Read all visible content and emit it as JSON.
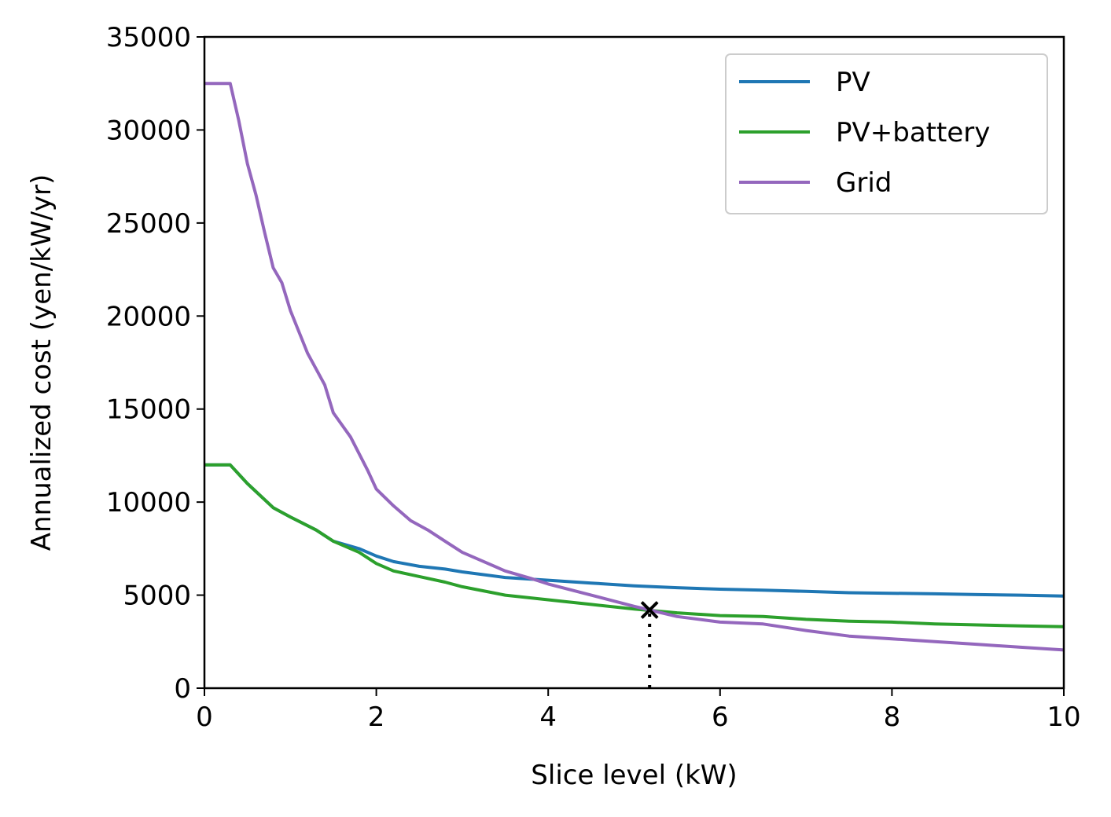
{
  "chart_data": {
    "type": "line",
    "title": "",
    "xlabel": "Slice level (kW)",
    "ylabel": "Annualized cost (yen/kW/yr)",
    "xlim": [
      0,
      10
    ],
    "ylim": [
      0,
      35000
    ],
    "xticks": [
      0,
      2,
      4,
      6,
      8,
      10
    ],
    "xtick_labels": [
      "0",
      "2",
      "4",
      "6",
      "8",
      "10"
    ],
    "yticks": [
      0,
      5000,
      10000,
      15000,
      20000,
      25000,
      30000,
      35000
    ],
    "ytick_labels": [
      "0",
      "5000",
      "10000",
      "15000",
      "20000",
      "25000",
      "30000",
      "35000"
    ],
    "grid": false,
    "legend_position": "top-right",
    "series": [
      {
        "name": "PV",
        "color": "#1f77b4",
        "x": [
          0,
          0.3,
          0.5,
          0.8,
          1.0,
          1.3,
          1.5,
          1.8,
          2.0,
          2.2,
          2.5,
          2.8,
          3.0,
          3.5,
          4.0,
          4.5,
          5.0,
          5.5,
          6.0,
          6.5,
          7.0,
          7.5,
          8.0,
          8.5,
          9.0,
          9.5,
          10.0
        ],
        "y": [
          12000,
          12000,
          11000,
          9700,
          9200,
          8500,
          7900,
          7500,
          7100,
          6800,
          6550,
          6400,
          6250,
          5950,
          5800,
          5650,
          5500,
          5400,
          5320,
          5270,
          5200,
          5130,
          5100,
          5070,
          5030,
          5000,
          4950
        ]
      },
      {
        "name": "PV+battery",
        "color": "#2ca02c",
        "x": [
          0,
          0.3,
          0.5,
          0.8,
          1.0,
          1.3,
          1.5,
          1.8,
          2.0,
          2.2,
          2.5,
          2.8,
          3.0,
          3.5,
          4.0,
          4.5,
          5.0,
          5.5,
          6.0,
          6.5,
          7.0,
          7.5,
          8.0,
          8.5,
          9.0,
          9.5,
          10.0
        ],
        "y": [
          12000,
          12000,
          11000,
          9700,
          9200,
          8500,
          7900,
          7300,
          6700,
          6300,
          6000,
          5700,
          5450,
          5000,
          4750,
          4500,
          4250,
          4050,
          3900,
          3850,
          3700,
          3600,
          3550,
          3450,
          3400,
          3350,
          3300
        ]
      },
      {
        "name": "Grid",
        "color": "#9467bd",
        "x": [
          0,
          0.3,
          0.4,
          0.5,
          0.6,
          0.7,
          0.8,
          0.9,
          1.0,
          1.2,
          1.4,
          1.5,
          1.7,
          1.9,
          2.0,
          2.2,
          2.4,
          2.6,
          2.8,
          3.0,
          3.2,
          3.5,
          3.8,
          4.0,
          4.5,
          5.0,
          5.18,
          5.5,
          6.0,
          6.5,
          7.0,
          7.5,
          8.0,
          8.5,
          9.0,
          9.5,
          10.0
        ],
        "y": [
          32500,
          32500,
          30500,
          28200,
          26500,
          24500,
          22600,
          21800,
          20300,
          18000,
          16300,
          14800,
          13500,
          11700,
          10700,
          9800,
          9000,
          8500,
          7900,
          7300,
          6900,
          6300,
          5900,
          5600,
          5000,
          4400,
          4200,
          3850,
          3550,
          3450,
          3100,
          2800,
          2650,
          2500,
          2350,
          2200,
          2050
        ]
      }
    ],
    "annotations": [
      {
        "type": "marker",
        "marker": "x",
        "x": 5.18,
        "y": 4200,
        "color": "#000000"
      },
      {
        "type": "vline",
        "style": "dotted",
        "x": 5.18,
        "y_from": 0,
        "y_to": 4200,
        "color": "#000000"
      }
    ]
  }
}
